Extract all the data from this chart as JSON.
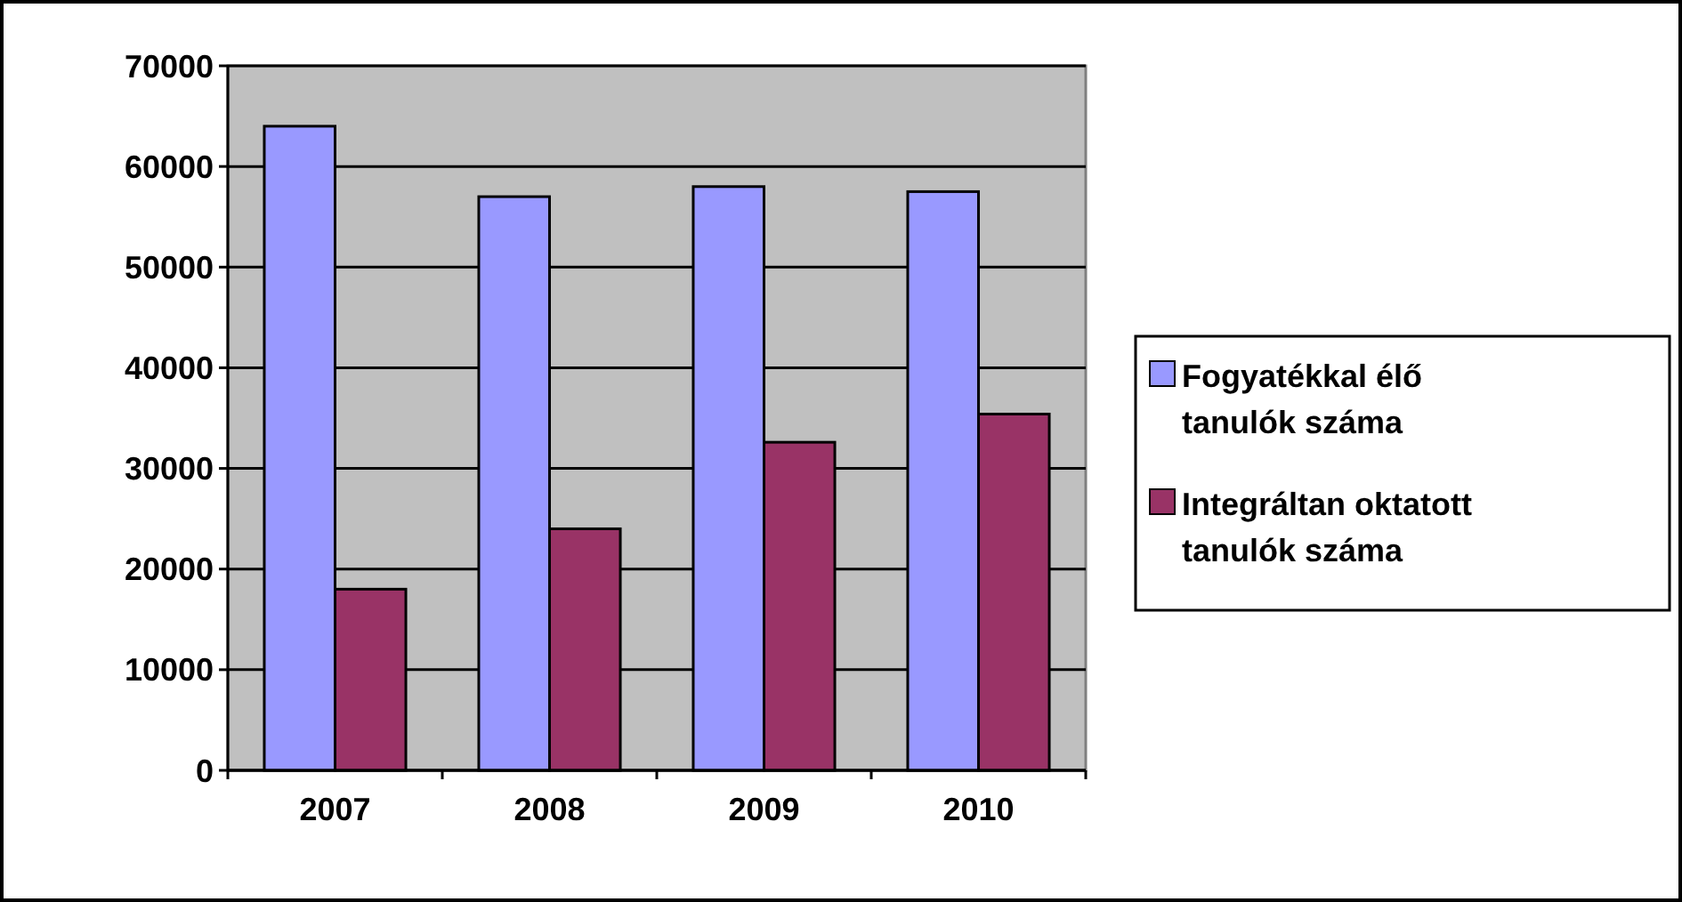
{
  "chart_data": {
    "type": "bar",
    "categories": [
      "2007",
      "2008",
      "2009",
      "2010"
    ],
    "series": [
      {
        "name": "Fogyatékkal élő tanulók száma",
        "color": "#9999ff",
        "values": [
          64000,
          57000,
          58000,
          57500
        ]
      },
      {
        "name": "Integráltan oktatott tanulók száma",
        "color": "#993366",
        "values": [
          18000,
          24000,
          32600,
          35400
        ]
      }
    ],
    "ylim": [
      0,
      70000
    ],
    "yticks": [
      0,
      10000,
      20000,
      30000,
      40000,
      50000,
      60000,
      70000
    ],
    "grid": "y",
    "legend": "right"
  }
}
